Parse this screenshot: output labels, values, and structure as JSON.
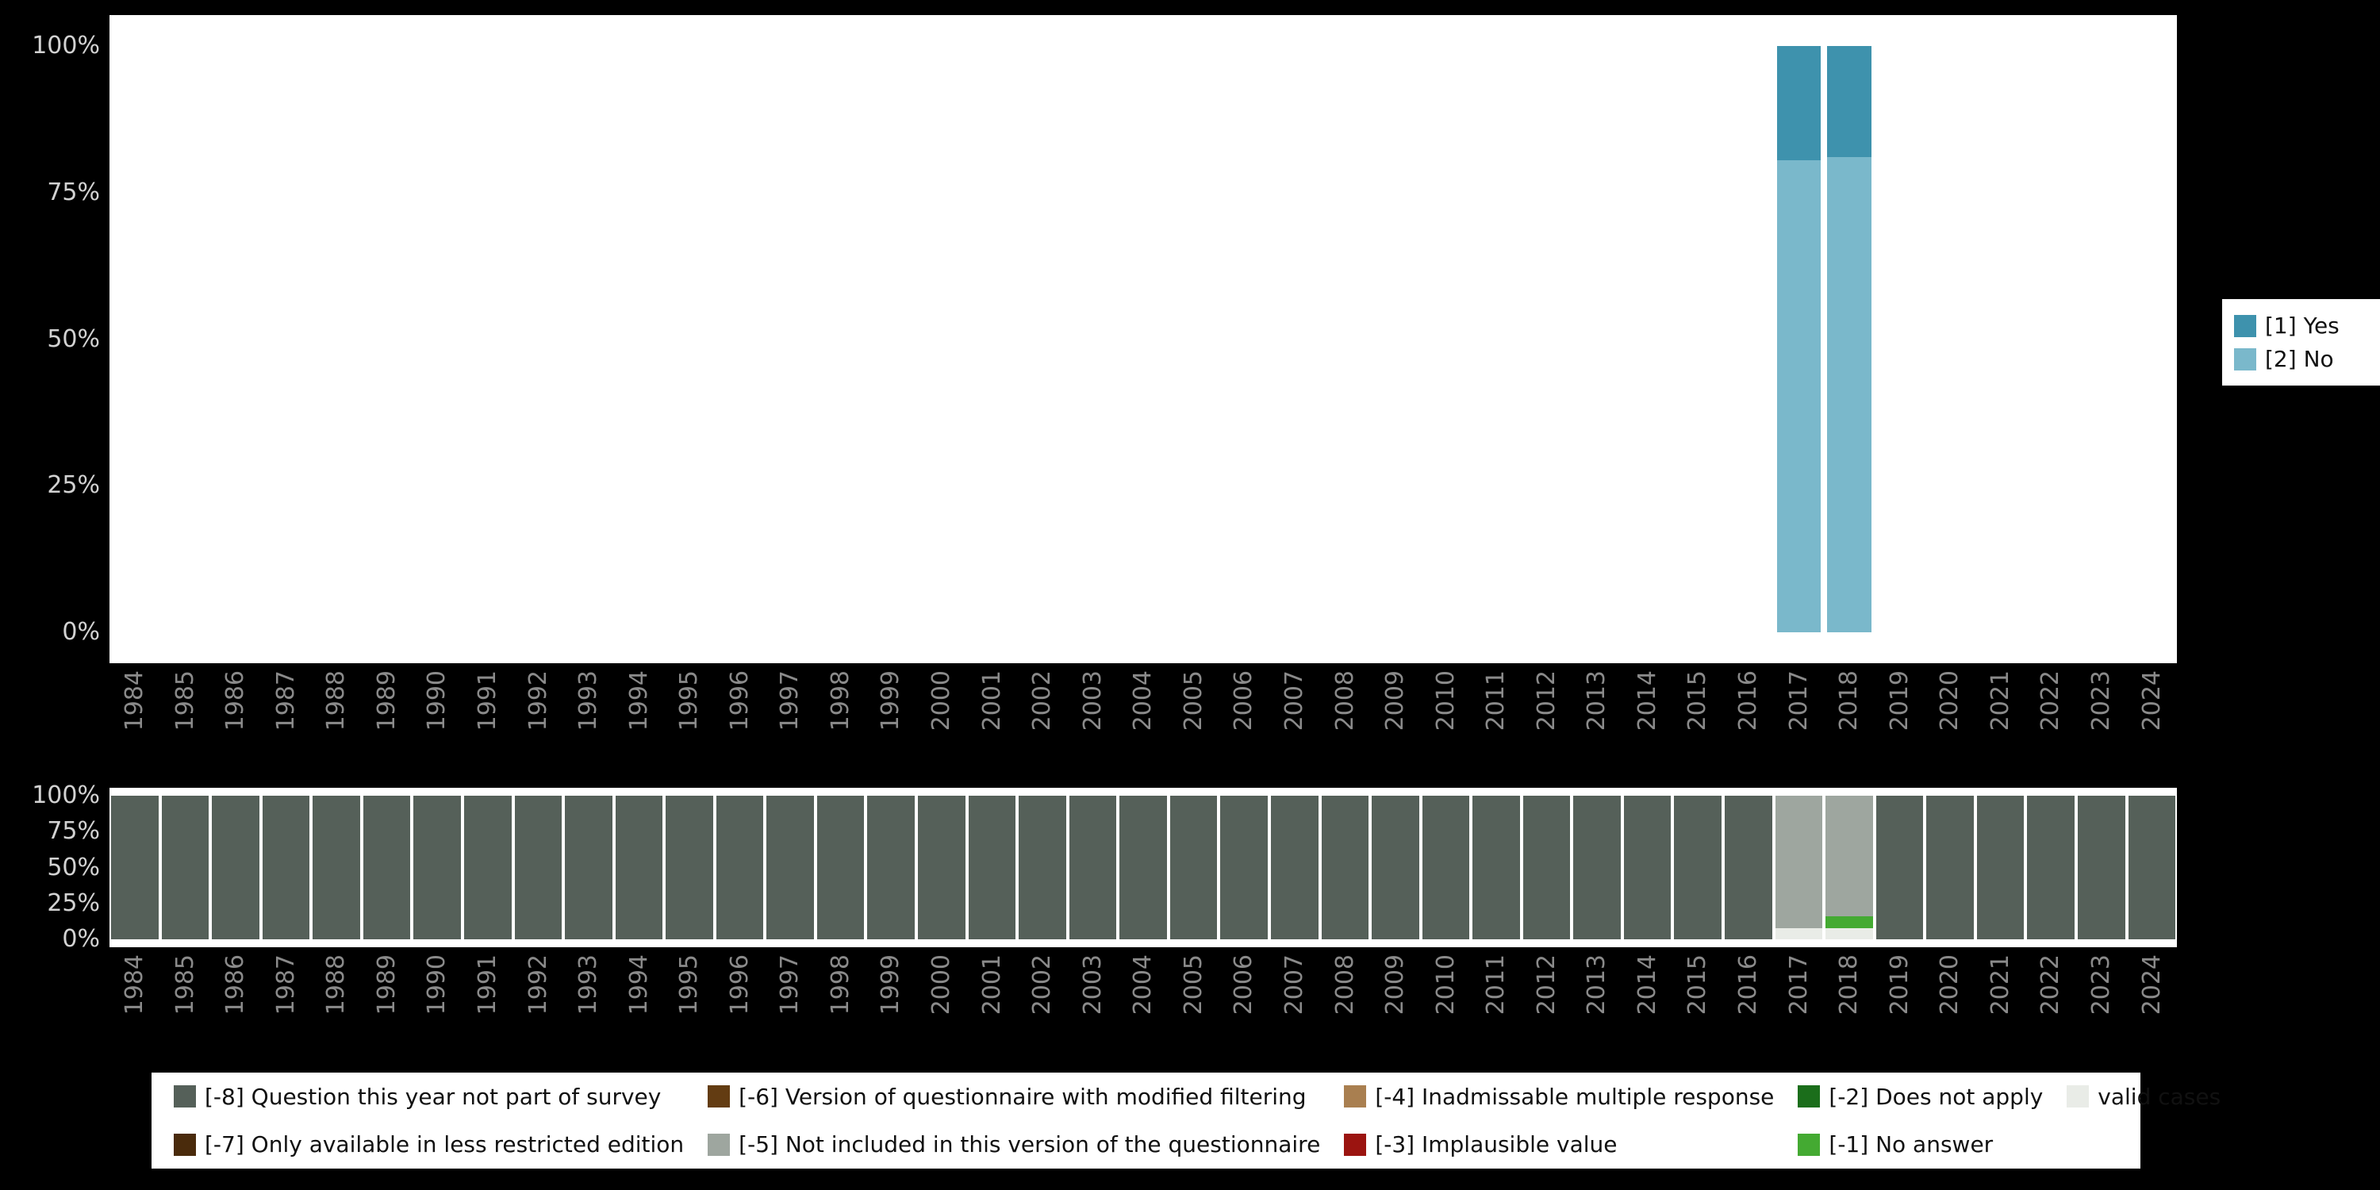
{
  "canvas": {
    "background": "#000000",
    "plot_background": "#ffffff",
    "y_label_color": "#d2d2d2",
    "x_label_color": "#8a8a8a"
  },
  "palette": {
    "[1] Yes": "#3e92ad",
    "[2] No": "#7ab8cb",
    "[-8] Question this year not part of survey": "#556059",
    "[-7] Only available in less restricted edition": "#4a2b0c",
    "[-6] Version of questionnaire with modified filtering": "#633c12",
    "[-5] Not included in this version of the questionnaire": "#9ea69f",
    "[-4] Inadmissable multiple response": "#a97f50",
    "[-3] Implausible value": "#9b1410",
    "[-2] Does not apply": "#1b6e1b",
    "[-1] No answer": "#44aa32",
    "valid cases": "#e9ece7"
  },
  "chart_data": [
    {
      "id": "responses",
      "type": "stacked-bar",
      "unit": "percent",
      "title": "",
      "xlabel": "",
      "ylabel": "",
      "ylim": [
        0,
        100
      ],
      "yticks": [
        100,
        75,
        50,
        25,
        0
      ],
      "grid": false,
      "legend_position": "right",
      "x": [
        "1984",
        "1985",
        "1986",
        "1987",
        "1988",
        "1989",
        "1990",
        "1991",
        "1992",
        "1993",
        "1994",
        "1995",
        "1996",
        "1997",
        "1998",
        "1999",
        "2000",
        "2001",
        "2002",
        "2003",
        "2004",
        "2005",
        "2006",
        "2007",
        "2008",
        "2009",
        "2010",
        "2011",
        "2012",
        "2013",
        "2014",
        "2015",
        "2016",
        "2017",
        "2018",
        "2019",
        "2020",
        "2021",
        "2022",
        "2023",
        "2024"
      ],
      "legend": [
        "[1] Yes",
        "[2] No"
      ],
      "bars": {
        "2017": [
          {
            "name": "[2] No",
            "pct": 80.5
          },
          {
            "name": "[1] Yes",
            "pct": 19.5
          }
        ],
        "2018": [
          {
            "name": "[2] No",
            "pct": 81
          },
          {
            "name": "[1] Yes",
            "pct": 19
          }
        ]
      }
    },
    {
      "id": "missings",
      "type": "stacked-bar",
      "unit": "percent",
      "title": "",
      "xlabel": "",
      "ylabel": "",
      "ylim": [
        0,
        100
      ],
      "yticks": [
        100,
        75,
        50,
        25,
        0
      ],
      "grid": false,
      "legend_position": "bottom",
      "x": [
        "1984",
        "1985",
        "1986",
        "1987",
        "1988",
        "1989",
        "1990",
        "1991",
        "1992",
        "1993",
        "1994",
        "1995",
        "1996",
        "1997",
        "1998",
        "1999",
        "2000",
        "2001",
        "2002",
        "2003",
        "2004",
        "2005",
        "2006",
        "2007",
        "2008",
        "2009",
        "2010",
        "2011",
        "2012",
        "2013",
        "2014",
        "2015",
        "2016",
        "2017",
        "2018",
        "2019",
        "2020",
        "2021",
        "2022",
        "2023",
        "2024"
      ],
      "legend": [
        "[-8] Question this year not part of survey",
        "[-7] Only available in less restricted edition",
        "[-6] Version of questionnaire with modified filtering",
        "[-5] Not included in this version of the questionnaire",
        "[-4] Inadmissable multiple response",
        "[-3] Implausible value",
        "[-2] Does not apply",
        "[-1] No answer",
        "valid cases"
      ],
      "bars": {
        "default": [
          {
            "name": "[-8] Question this year not part of survey",
            "pct": 100
          }
        ],
        "2017": [
          {
            "name": "valid cases",
            "pct": 8
          },
          {
            "name": "[-5] Not included in this version of the questionnaire",
            "pct": 92
          }
        ],
        "2018": [
          {
            "name": "valid cases",
            "pct": 8
          },
          {
            "name": "[-1] No answer",
            "pct": 8
          },
          {
            "name": "[-5] Not included in this version of the questionnaire",
            "pct": 84
          }
        ]
      }
    }
  ]
}
